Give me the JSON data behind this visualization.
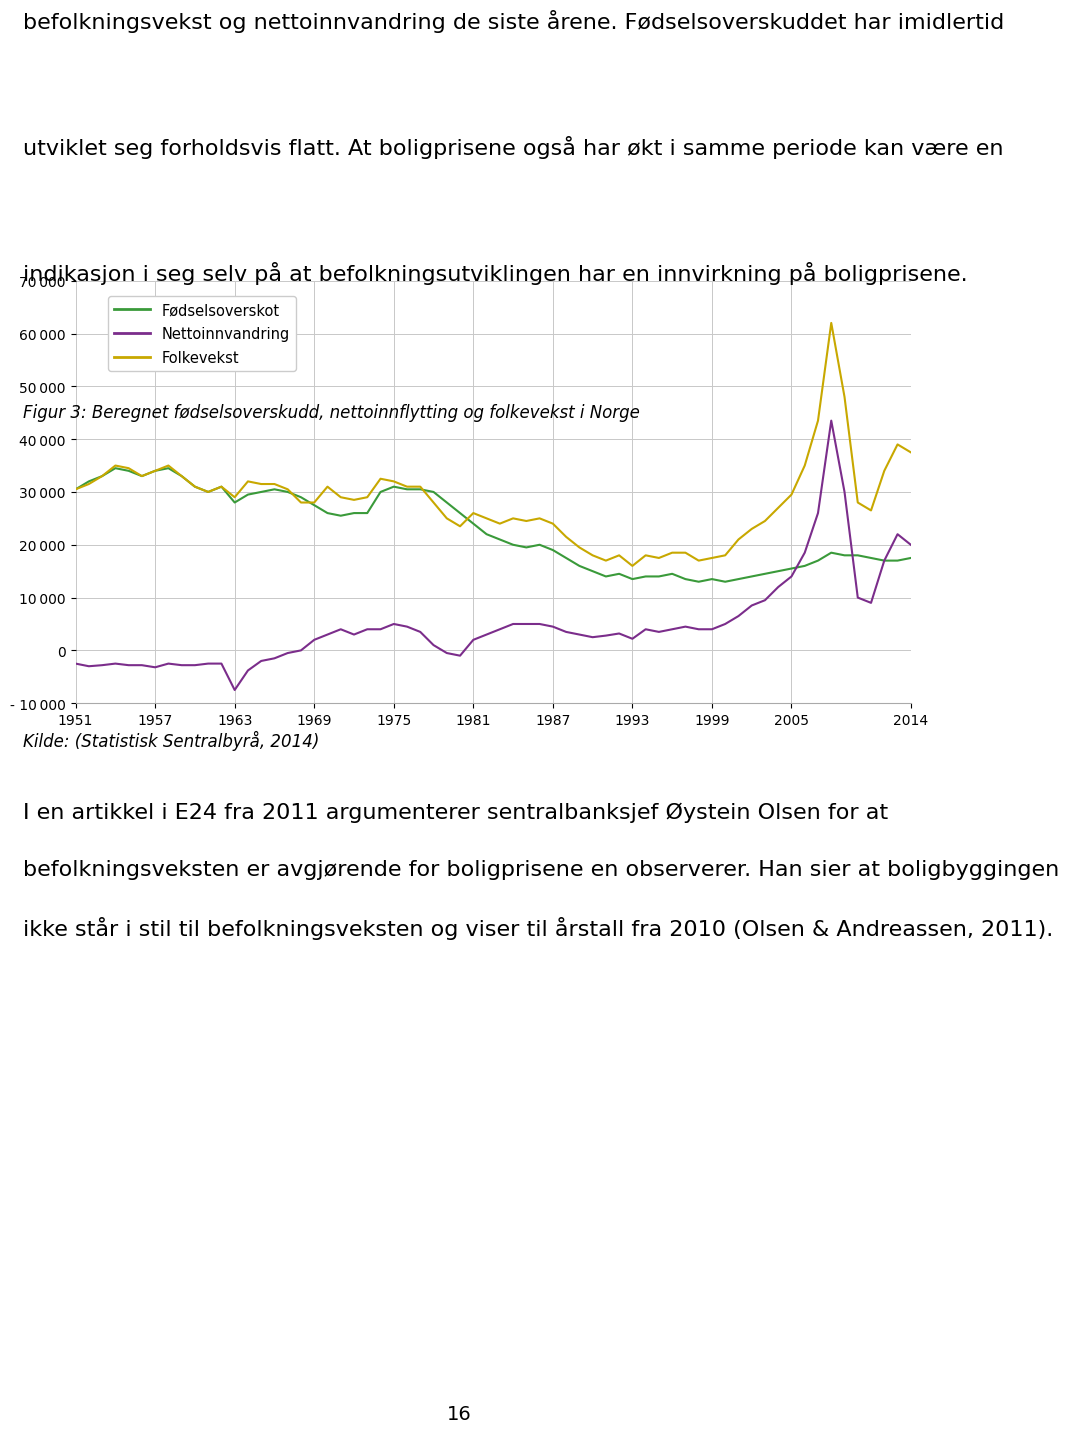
{
  "title_figur": "Figur 3: Beregnet fødselsoverskudd, nettoinnflytting og folkevekst i Norge",
  "kilde": "Kilde: (Statistisk Sentralbyrå, 2014)",
  "intro_text_lines": [
    "befolkningsvekst og nettoinnvandring de siste årene. Fødselsoverskuddet har imidlertid",
    "utviklet seg forholdsvis flatt. At boligprisene også har økt i samme periode kan være en",
    "indikasjon i seg selv på at befolkningsutviklingen har en innvirkning på boligprisene."
  ],
  "footer_text_lines": [
    "I en artikkel i E24 fra 2011 argumenterer sentralbanksjef Øystein Olsen for at",
    "befolkningsveksten er avgjørende for boligprisene en observerer. Han sier at boligbyggingen",
    "ikke står i stil til befolkningsveksten og viser til årstall fra 2010 (Olsen & Andreassen, 2011)."
  ],
  "page_number": "16",
  "years": [
    1951,
    1952,
    1953,
    1954,
    1955,
    1956,
    1957,
    1958,
    1959,
    1960,
    1961,
    1962,
    1963,
    1964,
    1965,
    1966,
    1967,
    1968,
    1969,
    1970,
    1971,
    1972,
    1973,
    1974,
    1975,
    1976,
    1977,
    1978,
    1979,
    1980,
    1981,
    1982,
    1983,
    1984,
    1985,
    1986,
    1987,
    1988,
    1989,
    1990,
    1991,
    1992,
    1993,
    1994,
    1995,
    1996,
    1997,
    1998,
    1999,
    2000,
    2001,
    2002,
    2003,
    2004,
    2005,
    2006,
    2007,
    2008,
    2009,
    2010,
    2011,
    2012,
    2013,
    2014
  ],
  "fodselsoverskudd": [
    30500,
    32000,
    33000,
    34500,
    34000,
    33000,
    34000,
    34500,
    33000,
    31000,
    30000,
    31000,
    28000,
    29500,
    30000,
    30500,
    30000,
    29000,
    27500,
    26000,
    25500,
    26000,
    26000,
    30000,
    31000,
    30500,
    30500,
    30000,
    28000,
    26000,
    24000,
    22000,
    21000,
    20000,
    19500,
    20000,
    19000,
    17500,
    16000,
    15000,
    14000,
    14500,
    13500,
    14000,
    14000,
    14500,
    13500,
    13000,
    13500,
    13000,
    13500,
    14000,
    14500,
    15000,
    15500,
    16000,
    17000,
    18500,
    18000,
    18000,
    17500,
    17000,
    17000,
    17500
  ],
  "nettoinnvandring": [
    -2500,
    -3000,
    -2800,
    -2500,
    -2800,
    -2800,
    -3200,
    -2500,
    -2800,
    -2800,
    -2500,
    -2500,
    -7500,
    -3800,
    -2000,
    -1500,
    -500,
    0,
    2000,
    3000,
    4000,
    3000,
    4000,
    4000,
    5000,
    4500,
    3500,
    1000,
    -500,
    -1000,
    2000,
    3000,
    4000,
    5000,
    5000,
    5000,
    4500,
    3500,
    3000,
    2500,
    2800,
    3200,
    2200,
    4000,
    3500,
    4000,
    4500,
    4000,
    4000,
    5000,
    6500,
    8500,
    9500,
    12000,
    14000,
    18500,
    26000,
    43500,
    30000,
    10000,
    9000,
    17000,
    22000,
    20000
  ],
  "folkevekst": [
    30500,
    31500,
    33000,
    35000,
    34500,
    33000,
    34000,
    35000,
    33000,
    31000,
    30000,
    31000,
    29000,
    32000,
    31500,
    31500,
    30500,
    28000,
    28000,
    31000,
    29000,
    28500,
    29000,
    32500,
    32000,
    31000,
    31000,
    28000,
    25000,
    23500,
    26000,
    25000,
    24000,
    25000,
    24500,
    25000,
    24000,
    21500,
    19500,
    18000,
    17000,
    18000,
    16000,
    18000,
    17500,
    18500,
    18500,
    17000,
    17500,
    18000,
    21000,
    23000,
    24500,
    27000,
    29500,
    35000,
    43500,
    62000,
    48000,
    28000,
    26500,
    34000,
    39000,
    37500
  ],
  "ylim": [
    -10000,
    70000
  ],
  "yticks": [
    -10000,
    0,
    10000,
    20000,
    30000,
    40000,
    50000,
    60000,
    70000
  ],
  "xtick_years": [
    1951,
    1957,
    1963,
    1969,
    1975,
    1981,
    1987,
    1993,
    1999,
    2005,
    2014
  ],
  "color_fodsels": "#3a9a3a",
  "color_netto": "#7b2d8b",
  "color_folkevekst": "#c8a800",
  "legend_labels": [
    "Fødselsoverskot",
    "Nettoinnvandring",
    "Folkevekst"
  ],
  "background_color": "#ffffff",
  "grid_color": "#c8c8c8",
  "intro_fontsize": 16,
  "caption_fontsize": 12,
  "footer_fontsize": 16,
  "page_fontsize": 14
}
